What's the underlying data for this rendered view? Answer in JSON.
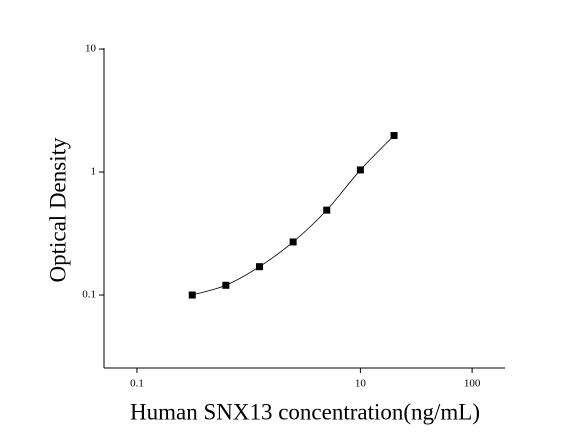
{
  "chart_data": {
    "type": "scatter",
    "x_label": "Human SNX13 concentration(ng/mL)",
    "y_label": "Optical Density",
    "x": [
      0.3125,
      0.625,
      1.25,
      2.5,
      5,
      10,
      20
    ],
    "series": [
      {
        "color": "#000000",
        "values": [
          0.1,
          0.12,
          0.17,
          0.27,
          0.49,
          1.04,
          1.98
        ]
      }
    ],
    "xlim": [
      0.0507,
      197
    ],
    "ylim": [
      0.0255,
      10.2
    ],
    "xticks": [
      0.1,
      10,
      100
    ],
    "yticks": [
      0.1,
      1,
      10
    ],
    "xlog": true,
    "ylog": true,
    "fit_curve": true
  }
}
